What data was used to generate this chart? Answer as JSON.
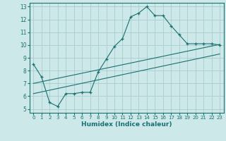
{
  "xlabel": "Humidex (Indice chaleur)",
  "bg_color": "#cce8e8",
  "grid_color": "#aacccc",
  "line_color": "#1a7070",
  "xlim": [
    -0.5,
    23.5
  ],
  "ylim": [
    4.7,
    13.3
  ],
  "xticks": [
    0,
    1,
    2,
    3,
    4,
    5,
    6,
    7,
    8,
    9,
    10,
    11,
    12,
    13,
    14,
    15,
    16,
    17,
    18,
    19,
    20,
    21,
    22,
    23
  ],
  "yticks": [
    5,
    6,
    7,
    8,
    9,
    10,
    11,
    12,
    13
  ],
  "main_line_x": [
    0,
    1,
    2,
    3,
    4,
    5,
    6,
    7,
    8,
    9,
    10,
    11,
    12,
    13,
    14,
    15,
    16,
    17,
    18,
    19,
    20,
    21,
    22,
    23
  ],
  "main_line_y": [
    8.5,
    7.5,
    5.5,
    5.2,
    6.2,
    6.2,
    6.3,
    6.3,
    7.9,
    8.9,
    9.9,
    10.5,
    12.2,
    12.5,
    13.0,
    12.3,
    12.3,
    11.5,
    10.8,
    10.1,
    10.1,
    10.1,
    10.1,
    10.0
  ],
  "line2_x": [
    0,
    23
  ],
  "line2_y": [
    7.0,
    10.05
  ],
  "line3_x": [
    0,
    23
  ],
  "line3_y": [
    6.2,
    9.3
  ]
}
